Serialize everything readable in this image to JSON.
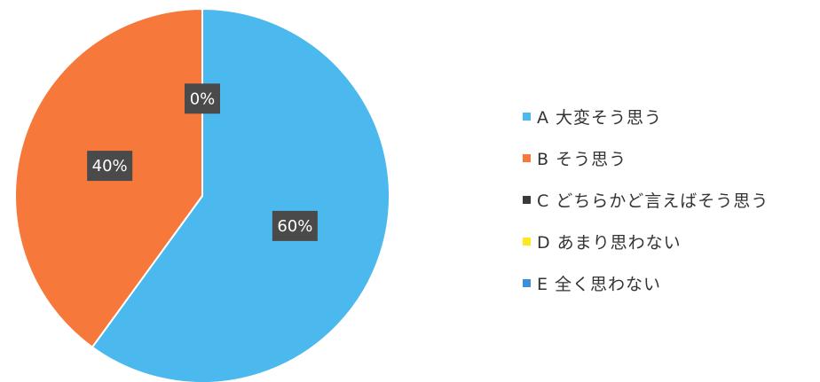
{
  "chart_data": {
    "type": "pie",
    "categories": [
      "A 大変そう思う",
      "B そう思う",
      "C どちらかど言えばそう思う",
      "D あまり思わない",
      "E 全く思わない"
    ],
    "values": [
      60,
      40,
      0,
      0,
      0
    ],
    "labels": [
      "60%",
      "40%",
      "0%",
      "",
      ""
    ],
    "colors": [
      "#4BB8EE",
      "#F7783B",
      "#3A3A3A",
      "#FFE81A",
      "#3D8FD8"
    ],
    "label_box_color": "#4A4A4A",
    "start_angle_deg": 0,
    "direction": "clockwise",
    "legend_position": "right"
  }
}
